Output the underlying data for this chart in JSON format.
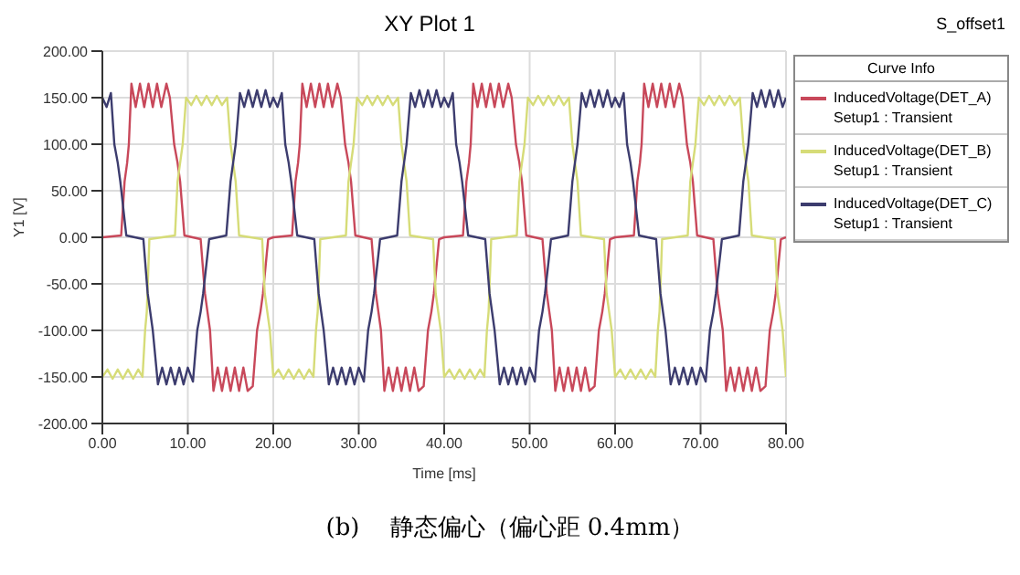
{
  "chart_data": {
    "type": "line",
    "title": "XY Plot 1",
    "xlabel": "Time [ms]",
    "ylabel": "Y1 [V]",
    "legend_title": "Curve Info",
    "legend": "right",
    "marker": "none",
    "grid": true,
    "annotations": [
      "S_offset1",
      "(b)    静态偏心（偏心距 0.4mm）"
    ],
    "xlim": [
      0,
      80
    ],
    "ylim": [
      -200,
      200
    ],
    "xticks": [
      {
        "value": 0,
        "label": "0.00"
      },
      {
        "value": 10,
        "label": "10.00"
      },
      {
        "value": 20,
        "label": "20.00"
      },
      {
        "value": 30,
        "label": "30.00"
      },
      {
        "value": 40,
        "label": "40.00"
      },
      {
        "value": 50,
        "label": "50.00"
      },
      {
        "value": 60,
        "label": "60.00"
      },
      {
        "value": 70,
        "label": "70.00"
      },
      {
        "value": 80,
        "label": "80.00"
      }
    ],
    "yticks": [
      {
        "value": -200,
        "label": "-200.00"
      },
      {
        "value": -150,
        "label": "-150.00"
      },
      {
        "value": -100,
        "label": "-100.00"
      },
      {
        "value": -50,
        "label": "-50.00"
      },
      {
        "value": 0,
        "label": "0.00"
      },
      {
        "value": 50,
        "label": "50.00"
      },
      {
        "value": 100,
        "label": "100.00"
      },
      {
        "value": 150,
        "label": "150.00"
      },
      {
        "value": 200,
        "label": "200.00"
      }
    ],
    "series": [
      {
        "name": "InducedVoltage(DET_A) Setup1 : Transient",
        "color": "#c8485a",
        "x": [
          0,
          2.2,
          2.6,
          2.9,
          3.1,
          3.4,
          3.9,
          4.4,
          4.9,
          5.4,
          5.9,
          6.4,
          6.9,
          7.5,
          7.9,
          8.4,
          8.8,
          9.1,
          9.6,
          11.5,
          12,
          12.3,
          12.6,
          13,
          13.5,
          14,
          14.5,
          15,
          15.5,
          16,
          16.5,
          17,
          17.6,
          18.1,
          18.5,
          18.8,
          19.4,
          20,
          22.2,
          22.6,
          22.9,
          23.1,
          23.4,
          23.9,
          24.4,
          24.9,
          25.4,
          25.9,
          26.4,
          26.9,
          27.5,
          27.9,
          28.4,
          28.8,
          29.1,
          29.6,
          31.5,
          32,
          32.3,
          32.6,
          33,
          33.5,
          34,
          34.5,
          35,
          35.5,
          36,
          36.5,
          37,
          37.6,
          38.1,
          38.5,
          38.8,
          39.4,
          40,
          42.2,
          42.6,
          42.9,
          43.1,
          43.4,
          43.9,
          44.4,
          44.9,
          45.4,
          45.9,
          46.4,
          46.9,
          47.5,
          47.9,
          48.4,
          48.8,
          49.1,
          49.6,
          51.5,
          52,
          52.3,
          52.6,
          53,
          53.5,
          54,
          54.5,
          55,
          55.5,
          56,
          56.5,
          57,
          57.6,
          58.1,
          58.5,
          58.8,
          59.4,
          60,
          62.2,
          62.6,
          62.9,
          63.1,
          63.4,
          63.9,
          64.4,
          64.9,
          65.4,
          65.9,
          66.4,
          66.9,
          67.5,
          67.9,
          68.4,
          68.8,
          69.1,
          69.6,
          71.5,
          72,
          72.3,
          72.6,
          73,
          73.5,
          74,
          74.5,
          75,
          75.5,
          76,
          76.5,
          77,
          77.6,
          78.1,
          78.5,
          78.8,
          79.4,
          80
        ],
        "values": [
          0,
          2,
          60,
          80,
          100,
          165,
          140,
          165,
          140,
          165,
          140,
          165,
          140,
          165,
          150,
          100,
          80,
          60,
          2,
          -2,
          -60,
          -80,
          -100,
          -165,
          -140,
          -165,
          -140,
          -165,
          -140,
          -165,
          -140,
          -165,
          -160,
          -100,
          -80,
          -60,
          -2,
          0,
          2,
          60,
          80,
          100,
          165,
          140,
          165,
          140,
          165,
          140,
          165,
          140,
          165,
          150,
          100,
          80,
          60,
          2,
          -2,
          -60,
          -80,
          -100,
          -165,
          -140,
          -165,
          -140,
          -165,
          -140,
          -165,
          -140,
          -165,
          -160,
          -100,
          -80,
          -60,
          -2,
          0,
          2,
          60,
          80,
          100,
          165,
          140,
          165,
          140,
          165,
          140,
          165,
          140,
          165,
          150,
          100,
          80,
          60,
          2,
          -2,
          -60,
          -80,
          -100,
          -165,
          -140,
          -165,
          -140,
          -165,
          -140,
          -165,
          -140,
          -165,
          -160,
          -100,
          -80,
          -60,
          -2,
          0,
          2,
          60,
          80,
          100,
          165,
          140,
          165,
          140,
          165,
          140,
          165,
          140,
          165,
          150,
          100,
          80,
          60,
          2,
          -2,
          -60,
          -80,
          -100,
          -165,
          -140,
          -165,
          -140,
          -165,
          -140,
          -165,
          -140,
          -165,
          -160,
          -100,
          -80,
          -60,
          -2,
          0
        ]
      },
      {
        "name": "InducedVoltage(DET_B) Setup1 : Transient",
        "color": "#d6dc78",
        "x": [
          0,
          0.6,
          1.2,
          1.8,
          2.4,
          3,
          3.6,
          4.2,
          4.7,
          5,
          5.2,
          5.5,
          8.5,
          8.8,
          9.1,
          9.4,
          9.8,
          10.4,
          11,
          11.6,
          12.2,
          12.8,
          13.4,
          14,
          14.6,
          15,
          15.3,
          15.6,
          16,
          18.7,
          19,
          19.3,
          19.6,
          20,
          20.6,
          21.2,
          21.8,
          22.4,
          23,
          23.6,
          24.2,
          24.7,
          25,
          25.2,
          25.5,
          28.5,
          28.8,
          29.1,
          29.4,
          29.8,
          30.4,
          31,
          31.6,
          32.2,
          32.8,
          33.4,
          34,
          34.6,
          35,
          35.3,
          35.6,
          36,
          38.7,
          39,
          39.3,
          39.6,
          40,
          40.6,
          41.2,
          41.8,
          42.4,
          43,
          43.6,
          44.2,
          44.7,
          45,
          45.2,
          45.5,
          48.5,
          48.8,
          49.1,
          49.4,
          49.8,
          50.4,
          51,
          51.6,
          52.2,
          52.8,
          53.4,
          54,
          54.6,
          55,
          55.3,
          55.6,
          56,
          58.7,
          59,
          59.3,
          59.6,
          60,
          60.6,
          61.2,
          61.8,
          62.4,
          63,
          63.6,
          64.2,
          64.7,
          65,
          65.2,
          65.5,
          68.5,
          68.8,
          69.1,
          69.4,
          69.8,
          70.4,
          71,
          71.6,
          72.2,
          72.8,
          73.4,
          74,
          74.6,
          75,
          75.3,
          75.6,
          76,
          78.7,
          79,
          79.3,
          79.6,
          80
        ],
        "values": [
          -150,
          -142,
          -152,
          -142,
          -152,
          -142,
          -152,
          -142,
          -150,
          -100,
          -80,
          -2,
          2,
          60,
          80,
          100,
          150,
          142,
          152,
          142,
          152,
          142,
          152,
          142,
          150,
          100,
          80,
          60,
          2,
          -2,
          -60,
          -80,
          -100,
          -150,
          -142,
          -152,
          -142,
          -152,
          -142,
          -152,
          -142,
          -150,
          -100,
          -80,
          -2,
          2,
          60,
          80,
          100,
          150,
          142,
          152,
          142,
          152,
          142,
          152,
          142,
          150,
          100,
          80,
          60,
          2,
          -2,
          -60,
          -80,
          -100,
          -150,
          -142,
          -152,
          -142,
          -152,
          -142,
          -152,
          -142,
          -150,
          -100,
          -80,
          -2,
          2,
          60,
          80,
          100,
          150,
          142,
          152,
          142,
          152,
          142,
          152,
          142,
          150,
          100,
          80,
          60,
          2,
          -2,
          -60,
          -80,
          -100,
          -150,
          -142,
          -152,
          -142,
          -152,
          -142,
          -152,
          -142,
          -150,
          -100,
          -80,
          -2,
          2,
          60,
          80,
          100,
          150,
          142,
          152,
          142,
          152,
          142,
          152,
          142,
          150,
          100,
          80,
          60,
          2,
          -2,
          -60,
          -80,
          -100,
          -150
        ]
      },
      {
        "name": "InducedVoltage(DET_C) Setup1 : Transient",
        "color": "#3c3c6e",
        "x": [
          0,
          0.5,
          1,
          1.4,
          1.8,
          2.1,
          2.8,
          4.8,
          5.3,
          5.6,
          5.9,
          6.5,
          7,
          7.5,
          8,
          8.5,
          9,
          9.5,
          10,
          10.6,
          11.1,
          11.5,
          11.8,
          12.5,
          14.5,
          15,
          15.3,
          15.6,
          16.1,
          16.6,
          17.1,
          17.6,
          18.1,
          18.6,
          19.1,
          19.6,
          20,
          20.5,
          21,
          21.4,
          21.8,
          22.1,
          22.8,
          24.8,
          25.3,
          25.6,
          25.9,
          26.5,
          27,
          27.5,
          28,
          28.5,
          29,
          29.5,
          30,
          30.6,
          31.1,
          31.5,
          31.8,
          32.5,
          34.5,
          35,
          35.3,
          35.6,
          36.1,
          36.6,
          37.1,
          37.6,
          38.1,
          38.6,
          39.1,
          39.6,
          40,
          40.5,
          41,
          41.4,
          41.8,
          42.1,
          42.8,
          44.8,
          45.3,
          45.6,
          45.9,
          46.5,
          47,
          47.5,
          48,
          48.5,
          49,
          49.5,
          50,
          50.6,
          51.1,
          51.5,
          51.8,
          52.5,
          54.5,
          55,
          55.3,
          55.6,
          56.1,
          56.6,
          57.1,
          57.6,
          58.1,
          58.6,
          59.1,
          59.6,
          60,
          60.5,
          61,
          61.4,
          61.8,
          62.1,
          62.8,
          64.8,
          65.3,
          65.6,
          65.9,
          66.5,
          67,
          67.5,
          68,
          68.5,
          69,
          69.5,
          70,
          70.6,
          71.1,
          71.5,
          71.8,
          72.5,
          74.5,
          75,
          75.3,
          75.6,
          76.1,
          76.6,
          77.1,
          77.6,
          78.1,
          78.6,
          79.1,
          79.6,
          80
        ],
        "values": [
          150,
          140,
          155,
          100,
          80,
          60,
          2,
          -2,
          -60,
          -80,
          -100,
          -158,
          -140,
          -158,
          -140,
          -158,
          -140,
          -158,
          -140,
          -155,
          -100,
          -80,
          -60,
          -2,
          2,
          60,
          80,
          100,
          155,
          140,
          158,
          140,
          158,
          140,
          158,
          140,
          150,
          140,
          155,
          100,
          80,
          60,
          2,
          -2,
          -60,
          -80,
          -100,
          -158,
          -140,
          -158,
          -140,
          -158,
          -140,
          -158,
          -140,
          -155,
          -100,
          -80,
          -60,
          -2,
          2,
          60,
          80,
          100,
          155,
          140,
          158,
          140,
          158,
          140,
          158,
          140,
          150,
          140,
          155,
          100,
          80,
          60,
          2,
          -2,
          -60,
          -80,
          -100,
          -158,
          -140,
          -158,
          -140,
          -158,
          -140,
          -158,
          -140,
          -155,
          -100,
          -80,
          -60,
          -2,
          2,
          60,
          80,
          100,
          155,
          140,
          158,
          140,
          158,
          140,
          158,
          140,
          150,
          140,
          155,
          100,
          80,
          60,
          2,
          -2,
          -60,
          -80,
          -100,
          -158,
          -140,
          -158,
          -140,
          -158,
          -140,
          -158,
          -140,
          -155,
          -100,
          -80,
          -60,
          -2,
          2,
          60,
          80,
          100,
          155,
          140,
          158,
          140,
          158,
          140,
          158,
          140,
          150
        ]
      }
    ]
  }
}
